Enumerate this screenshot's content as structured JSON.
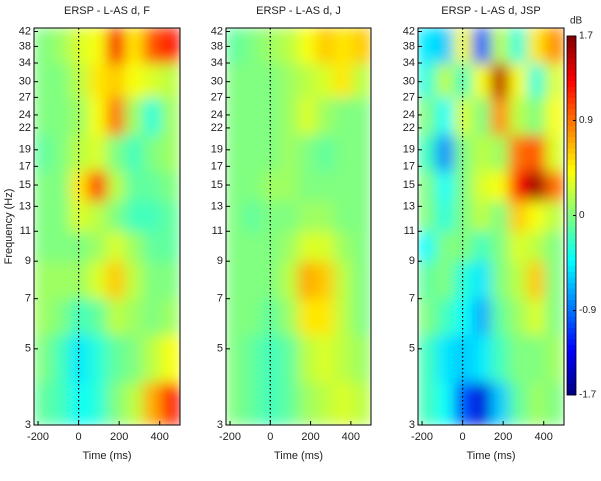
{
  "chart_data": [
    {
      "type": "heatmap",
      "title": "ERSP - L-AS d, F",
      "xlabel": "Time (ms)",
      "ylabel": "Frequency (Hz)",
      "xlim": [
        -220,
        500
      ],
      "xticks": [
        -200,
        0,
        200,
        400
      ],
      "ylim": [
        3,
        43
      ],
      "ylog": true,
      "yticks": [
        3,
        5,
        7,
        9,
        11,
        13,
        15,
        17,
        19,
        22,
        24,
        27,
        30,
        34,
        38,
        42
      ],
      "vline_x": 0,
      "colormap": "jet",
      "zlim": [
        -1.7,
        1.7
      ],
      "x_edges": [
        -220,
        -130,
        -40,
        50,
        140,
        230,
        320,
        410,
        500
      ],
      "y_edges": [
        3,
        4,
        5.5,
        7,
        9,
        11,
        13.5,
        16.5,
        21,
        27,
        34,
        43
      ],
      "z": [
        [
          -0.1,
          -0.2,
          -0.4,
          -0.3,
          0,
          0.2,
          0.7,
          1.2
        ],
        [
          0,
          -0.2,
          -0.5,
          -0.3,
          -0.1,
          0,
          0.2,
          0.4
        ],
        [
          0.1,
          0,
          -0.2,
          -0.1,
          0.2,
          0.1,
          0,
          0.1
        ],
        [
          0.1,
          0.1,
          0.1,
          0.3,
          0.6,
          0.2,
          0,
          0
        ],
        [
          0,
          0,
          0,
          0.1,
          0.3,
          0.1,
          -0.1,
          -0.1
        ],
        [
          0,
          0,
          0.3,
          0.2,
          0,
          -0.2,
          -0.2,
          -0.1
        ],
        [
          0,
          0,
          0.5,
          1.1,
          0.2,
          -0.1,
          -0.1,
          0
        ],
        [
          -0.1,
          0,
          0.2,
          0.3,
          0,
          -0.2,
          0,
          0.1
        ],
        [
          0,
          0,
          0.1,
          0.4,
          0.9,
          0.1,
          -0.3,
          0.1
        ],
        [
          0,
          0,
          0.2,
          0.5,
          0.6,
          0.4,
          0.3,
          0.2
        ],
        [
          0,
          0.1,
          0.3,
          0.4,
          1.3,
          0.5,
          1.0,
          1.2
        ]
      ]
    },
    {
      "type": "heatmap",
      "title": "ERSP - L-AS d, J",
      "xlabel": "Time (ms)",
      "xlim": [
        -220,
        500
      ],
      "xticks": [
        -200,
        0,
        200,
        400
      ],
      "ylim": [
        3,
        43
      ],
      "ylog": true,
      "yticks": [
        3,
        5,
        7,
        9,
        11,
        13,
        15,
        17,
        19,
        22,
        24,
        27,
        30,
        34,
        38,
        42
      ],
      "vline_x": 0,
      "colormap": "jet",
      "zlim": [
        -1.7,
        1.7
      ],
      "x_edges": [
        -220,
        -130,
        -40,
        50,
        140,
        230,
        320,
        410,
        500
      ],
      "y_edges": [
        3,
        4,
        5.5,
        7,
        9,
        11,
        13.5,
        16.5,
        21,
        27,
        34,
        43
      ],
      "z": [
        [
          0,
          -0.1,
          -0.2,
          -0.1,
          0.1,
          0.2,
          0.3,
          0.2
        ],
        [
          0,
          -0.1,
          -0.2,
          -0.1,
          0.2,
          0.3,
          0.2,
          0.1
        ],
        [
          0,
          0,
          -0.1,
          0.1,
          0.5,
          0.5,
          0.2,
          0
        ],
        [
          0,
          0,
          0,
          0.2,
          0.7,
          0.6,
          0.2,
          0
        ],
        [
          0,
          0,
          0,
          0.1,
          0.3,
          0.3,
          0.1,
          0
        ],
        [
          0,
          -0.1,
          0,
          0,
          0.1,
          0.1,
          0,
          0
        ],
        [
          0,
          0,
          0.1,
          0.1,
          0,
          0,
          0,
          0
        ],
        [
          0,
          0,
          0,
          0.1,
          0,
          -0.1,
          0,
          0
        ],
        [
          0,
          0,
          0,
          0.1,
          0.3,
          0.1,
          0,
          0
        ],
        [
          0,
          0,
          0,
          0.1,
          0.2,
          0.3,
          0.5,
          0.2
        ],
        [
          -0.1,
          0,
          0.1,
          0.2,
          0.4,
          0.6,
          0.5,
          0.6
        ]
      ]
    },
    {
      "type": "heatmap",
      "title": "ERSP - L-AS d, JSP",
      "xlabel": "Time (ms)",
      "xlim": [
        -220,
        500
      ],
      "xticks": [
        -200,
        0,
        200,
        400
      ],
      "ylim": [
        3,
        43
      ],
      "ylog": true,
      "yticks": [
        3,
        5,
        7,
        9,
        11,
        13,
        15,
        17,
        19,
        22,
        24,
        27,
        30,
        34,
        38,
        42
      ],
      "vline_x": 0,
      "colormap": "jet",
      "zlim": [
        -1.7,
        1.7
      ],
      "x_edges": [
        -220,
        -130,
        -40,
        50,
        140,
        230,
        320,
        410,
        500
      ],
      "y_edges": [
        3,
        4,
        5.5,
        7,
        9,
        11,
        13.5,
        16.5,
        21,
        27,
        34,
        43
      ],
      "z": [
        [
          -0.2,
          -0.4,
          -1.0,
          -1.4,
          -0.6,
          -0.1,
          0.1,
          0
        ],
        [
          -0.2,
          -0.5,
          -0.6,
          -0.5,
          -0.2,
          0,
          0,
          0.1
        ],
        [
          0,
          -0.2,
          -0.4,
          -0.7,
          -0.1,
          0.1,
          0.3,
          0
        ],
        [
          -0.1,
          0,
          -0.3,
          -0.5,
          0,
          0.2,
          0.6,
          0
        ],
        [
          -0.4,
          0,
          0,
          -0.2,
          0,
          0.3,
          0.2,
          0
        ],
        [
          0,
          -0.3,
          0,
          0.2,
          0,
          0.6,
          0.4,
          0.2
        ],
        [
          0,
          -0.4,
          0,
          0.3,
          0.4,
          1.2,
          1.6,
          0.9
        ],
        [
          -0.2,
          -0.8,
          0,
          0.2,
          0.1,
          0.9,
          1.0,
          0.3
        ],
        [
          0,
          -0.4,
          0.3,
          0,
          0.8,
          0.2,
          0,
          0.4
        ],
        [
          -0.3,
          0.2,
          -0.2,
          0.4,
          1.5,
          0.4,
          -0.3,
          0.3
        ],
        [
          -0.5,
          -0.6,
          0.4,
          -1.0,
          0.2,
          -0.3,
          0.5,
          0.8
        ]
      ],
      "colorbar": {
        "label": "dB",
        "ticks": [
          1.7,
          0.9,
          0,
          -0.9,
          -1.7
        ]
      }
    }
  ]
}
